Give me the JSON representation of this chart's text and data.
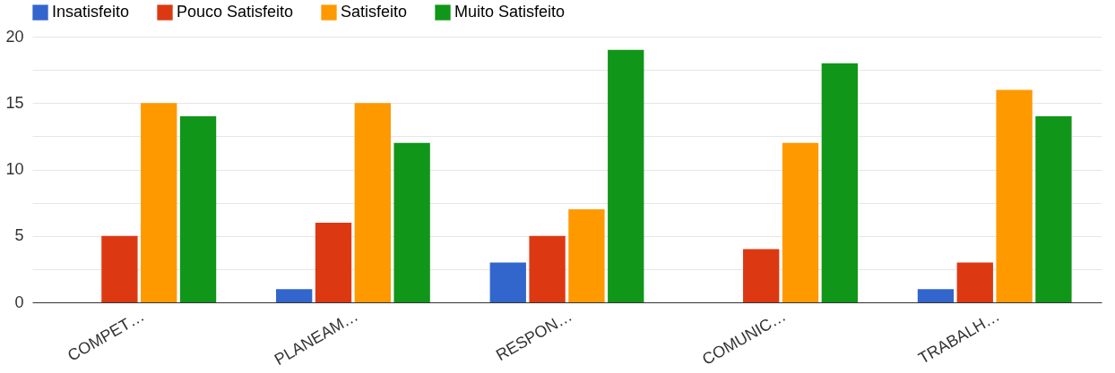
{
  "chart_data": {
    "type": "bar",
    "categories": [
      "COMPET…",
      "PLANEAM…",
      "RESPON…",
      "COMUNIC…",
      "TRABALH…"
    ],
    "series": [
      {
        "name": "Insatisfeito",
        "color": "#3366cc",
        "values": [
          0,
          1,
          3,
          0,
          1
        ]
      },
      {
        "name": "Pouco Satisfeito",
        "color": "#dc3912",
        "values": [
          5,
          6,
          5,
          4,
          3
        ]
      },
      {
        "name": "Satisfeito",
        "color": "#ff9900",
        "values": [
          15,
          15,
          7,
          12,
          16
        ]
      },
      {
        "name": "Muito Satisfeito",
        "color": "#109618",
        "values": [
          14,
          12,
          19,
          18,
          14
        ]
      }
    ],
    "ylim": [
      0,
      20
    ],
    "yticks": [
      0,
      {
        "value": 2.5,
        "label": null
      },
      5,
      {
        "value": 7.5,
        "label": null
      },
      10,
      {
        "value": 12.5,
        "label": null
      },
      15,
      {
        "value": 17.5,
        "label": null
      },
      20
    ],
    "grid": true,
    "legend": "top left"
  }
}
